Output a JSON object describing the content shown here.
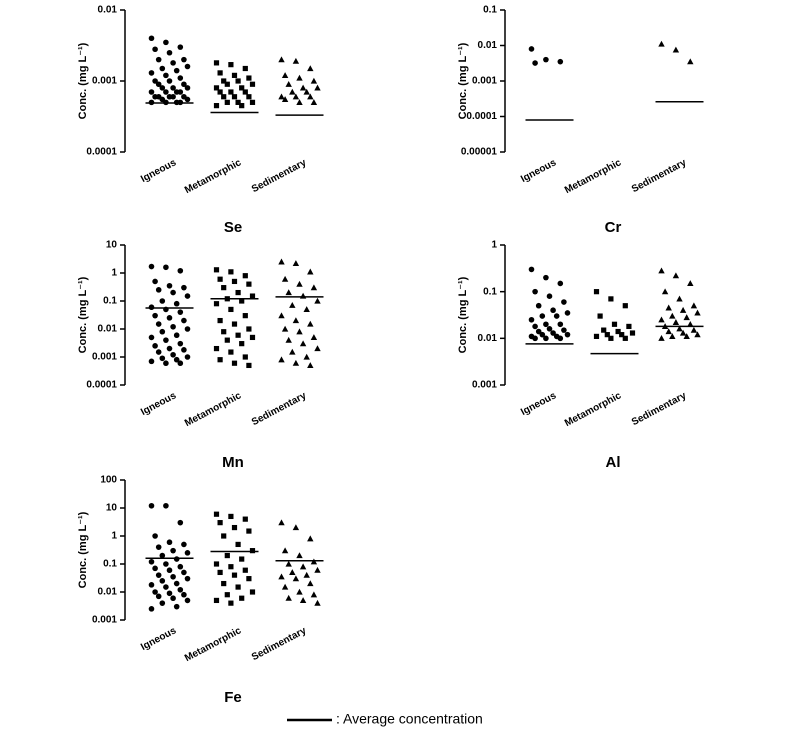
{
  "chart_data": [
    {
      "type": "scatter",
      "title": "Se",
      "ylabel": "Conc. (mg L⁻¹)",
      "log": true,
      "color": "#000000",
      "ylim": [
        0.0001,
        0.01
      ],
      "yticks": [
        0.0001,
        0.001,
        0.01
      ],
      "groups": [
        {
          "name": "Igneous",
          "marker": "circle",
          "mean": 0.00049,
          "values": [
            0.004,
            0.0035,
            0.003,
            0.0028,
            0.0025,
            0.002,
            0.002,
            0.0018,
            0.0016,
            0.0015,
            0.0014,
            0.0013,
            0.0012,
            0.0011,
            0.001,
            0.001,
            0.0009,
            0.0009,
            0.0008,
            0.0008,
            0.0008,
            0.0007,
            0.0007,
            0.0007,
            0.0007,
            0.0006,
            0.0006,
            0.0006,
            0.0006,
            0.0006,
            0.00055,
            0.00055,
            0.0005,
            0.0005,
            0.0005,
            0.0005
          ]
        },
        {
          "name": "Metamorphic",
          "marker": "square",
          "mean": 0.00036,
          "values": [
            0.0018,
            0.0017,
            0.0015,
            0.0013,
            0.0012,
            0.0011,
            0.001,
            0.001,
            0.0009,
            0.0009,
            0.0008,
            0.0008,
            0.0007,
            0.0007,
            0.0007,
            0.0006,
            0.0006,
            0.0006,
            0.0005,
            0.0005,
            0.0005,
            0.00045,
            0.00045
          ]
        },
        {
          "name": "Sedimentary",
          "marker": "triangle",
          "mean": 0.00033,
          "values": [
            0.002,
            0.0019,
            0.0015,
            0.0012,
            0.0011,
            0.001,
            0.0009,
            0.0008,
            0.0008,
            0.0007,
            0.0007,
            0.0006,
            0.0006,
            0.0006,
            0.00055,
            0.0005,
            0.0005
          ]
        }
      ]
    },
    {
      "type": "scatter",
      "title": "Cr",
      "ylabel": "Conc. (mg L⁻¹)",
      "log": true,
      "color": "#000000",
      "ylim": [
        1e-05,
        0.1
      ],
      "yticks": [
        1e-05,
        0.0001,
        0.001,
        0.01,
        0.1
      ],
      "groups": [
        {
          "name": "Igneous",
          "marker": "circle",
          "mean": 8e-05,
          "values": [
            0.008,
            0.004,
            0.0035,
            0.0032
          ]
        },
        {
          "name": "Metamorphic",
          "marker": "square",
          "mean": null,
          "values": []
        },
        {
          "name": "Sedimentary",
          "marker": "triangle",
          "mean": 0.00026,
          "values": [
            0.011,
            0.0075,
            0.0035
          ]
        }
      ]
    },
    {
      "type": "scatter",
      "title": "Mn",
      "ylabel": "Conc. (mg L⁻¹)",
      "log": true,
      "color": "#000000",
      "ylim": [
        0.0001,
        10
      ],
      "yticks": [
        0.0001,
        0.001,
        0.01,
        0.1,
        1,
        10
      ],
      "groups": [
        {
          "name": "Igneous",
          "marker": "circle",
          "mean": 0.056,
          "values": [
            1.7,
            1.6,
            1.2,
            0.5,
            0.35,
            0.3,
            0.25,
            0.2,
            0.15,
            0.1,
            0.08,
            0.06,
            0.05,
            0.04,
            0.03,
            0.025,
            0.02,
            0.015,
            0.012,
            0.01,
            0.008,
            0.006,
            0.005,
            0.004,
            0.003,
            0.0025,
            0.002,
            0.0018,
            0.0015,
            0.0012,
            0.001,
            0.0009,
            0.0008,
            0.0007,
            0.0006,
            0.0006
          ]
        },
        {
          "name": "Metamorphic",
          "marker": "square",
          "mean": 0.12,
          "values": [
            1.3,
            1.1,
            0.8,
            0.6,
            0.5,
            0.4,
            0.3,
            0.2,
            0.15,
            0.12,
            0.1,
            0.08,
            0.05,
            0.03,
            0.02,
            0.015,
            0.01,
            0.008,
            0.006,
            0.005,
            0.004,
            0.003,
            0.002,
            0.0015,
            0.001,
            0.0008,
            0.0006,
            0.0005
          ]
        },
        {
          "name": "Sedimentary",
          "marker": "triangle",
          "mean": 0.14,
          "values": [
            2.5,
            2.2,
            1.1,
            0.6,
            0.4,
            0.3,
            0.2,
            0.15,
            0.1,
            0.07,
            0.05,
            0.03,
            0.02,
            0.015,
            0.01,
            0.008,
            0.005,
            0.004,
            0.003,
            0.002,
            0.0015,
            0.001,
            0.0008,
            0.0006,
            0.0005
          ]
        }
      ]
    },
    {
      "type": "scatter",
      "title": "Al",
      "ylabel": "Conc. (mg L⁻¹)",
      "log": true,
      "color": "#000000",
      "ylim": [
        0.001,
        1
      ],
      "yticks": [
        0.001,
        0.01,
        0.1,
        1
      ],
      "groups": [
        {
          "name": "Igneous",
          "marker": "circle",
          "mean": 0.0076,
          "values": [
            0.3,
            0.2,
            0.15,
            0.1,
            0.08,
            0.06,
            0.05,
            0.04,
            0.035,
            0.03,
            0.03,
            0.025,
            0.02,
            0.02,
            0.018,
            0.016,
            0.015,
            0.014,
            0.013,
            0.012,
            0.012,
            0.011,
            0.011,
            0.01,
            0.01,
            0.01
          ]
        },
        {
          "name": "Metamorphic",
          "marker": "square",
          "mean": 0.0047,
          "values": [
            0.1,
            0.07,
            0.05,
            0.03,
            0.02,
            0.018,
            0.015,
            0.014,
            0.013,
            0.012,
            0.012,
            0.011,
            0.01,
            0.01
          ]
        },
        {
          "name": "Sedimentary",
          "marker": "triangle",
          "mean": 0.018,
          "values": [
            0.28,
            0.22,
            0.15,
            0.1,
            0.07,
            0.05,
            0.045,
            0.04,
            0.035,
            0.03,
            0.028,
            0.025,
            0.022,
            0.02,
            0.018,
            0.016,
            0.015,
            0.014,
            0.013,
            0.012,
            0.011,
            0.011,
            0.01
          ]
        }
      ]
    },
    {
      "type": "scatter",
      "title": "Fe",
      "ylabel": "Conc. (mg L⁻¹)",
      "log": true,
      "color": "#000000",
      "ylim": [
        0.001,
        100
      ],
      "yticks": [
        0.001,
        0.01,
        0.1,
        1,
        10,
        100
      ],
      "groups": [
        {
          "name": "Igneous",
          "marker": "circle",
          "mean": 0.16,
          "values": [
            12,
            12,
            3,
            1,
            0.6,
            0.5,
            0.4,
            0.3,
            0.25,
            0.2,
            0.15,
            0.12,
            0.1,
            0.08,
            0.07,
            0.06,
            0.05,
            0.04,
            0.035,
            0.03,
            0.025,
            0.02,
            0.018,
            0.015,
            0.012,
            0.01,
            0.009,
            0.008,
            0.007,
            0.006,
            0.005,
            0.004,
            0.003,
            0.0025
          ]
        },
        {
          "name": "Metamorphic",
          "marker": "square",
          "mean": 0.28,
          "values": [
            6,
            5,
            4,
            3,
            2,
            1.5,
            1,
            0.5,
            0.3,
            0.2,
            0.15,
            0.1,
            0.08,
            0.06,
            0.05,
            0.04,
            0.03,
            0.02,
            0.015,
            0.01,
            0.008,
            0.006,
            0.005,
            0.004
          ]
        },
        {
          "name": "Sedimentary",
          "marker": "triangle",
          "mean": 0.13,
          "values": [
            3,
            2,
            0.8,
            0.3,
            0.2,
            0.12,
            0.1,
            0.08,
            0.06,
            0.05,
            0.04,
            0.035,
            0.03,
            0.02,
            0.015,
            0.01,
            0.008,
            0.006,
            0.005,
            0.004
          ]
        }
      ]
    }
  ],
  "legend_label": ": Average concentration"
}
